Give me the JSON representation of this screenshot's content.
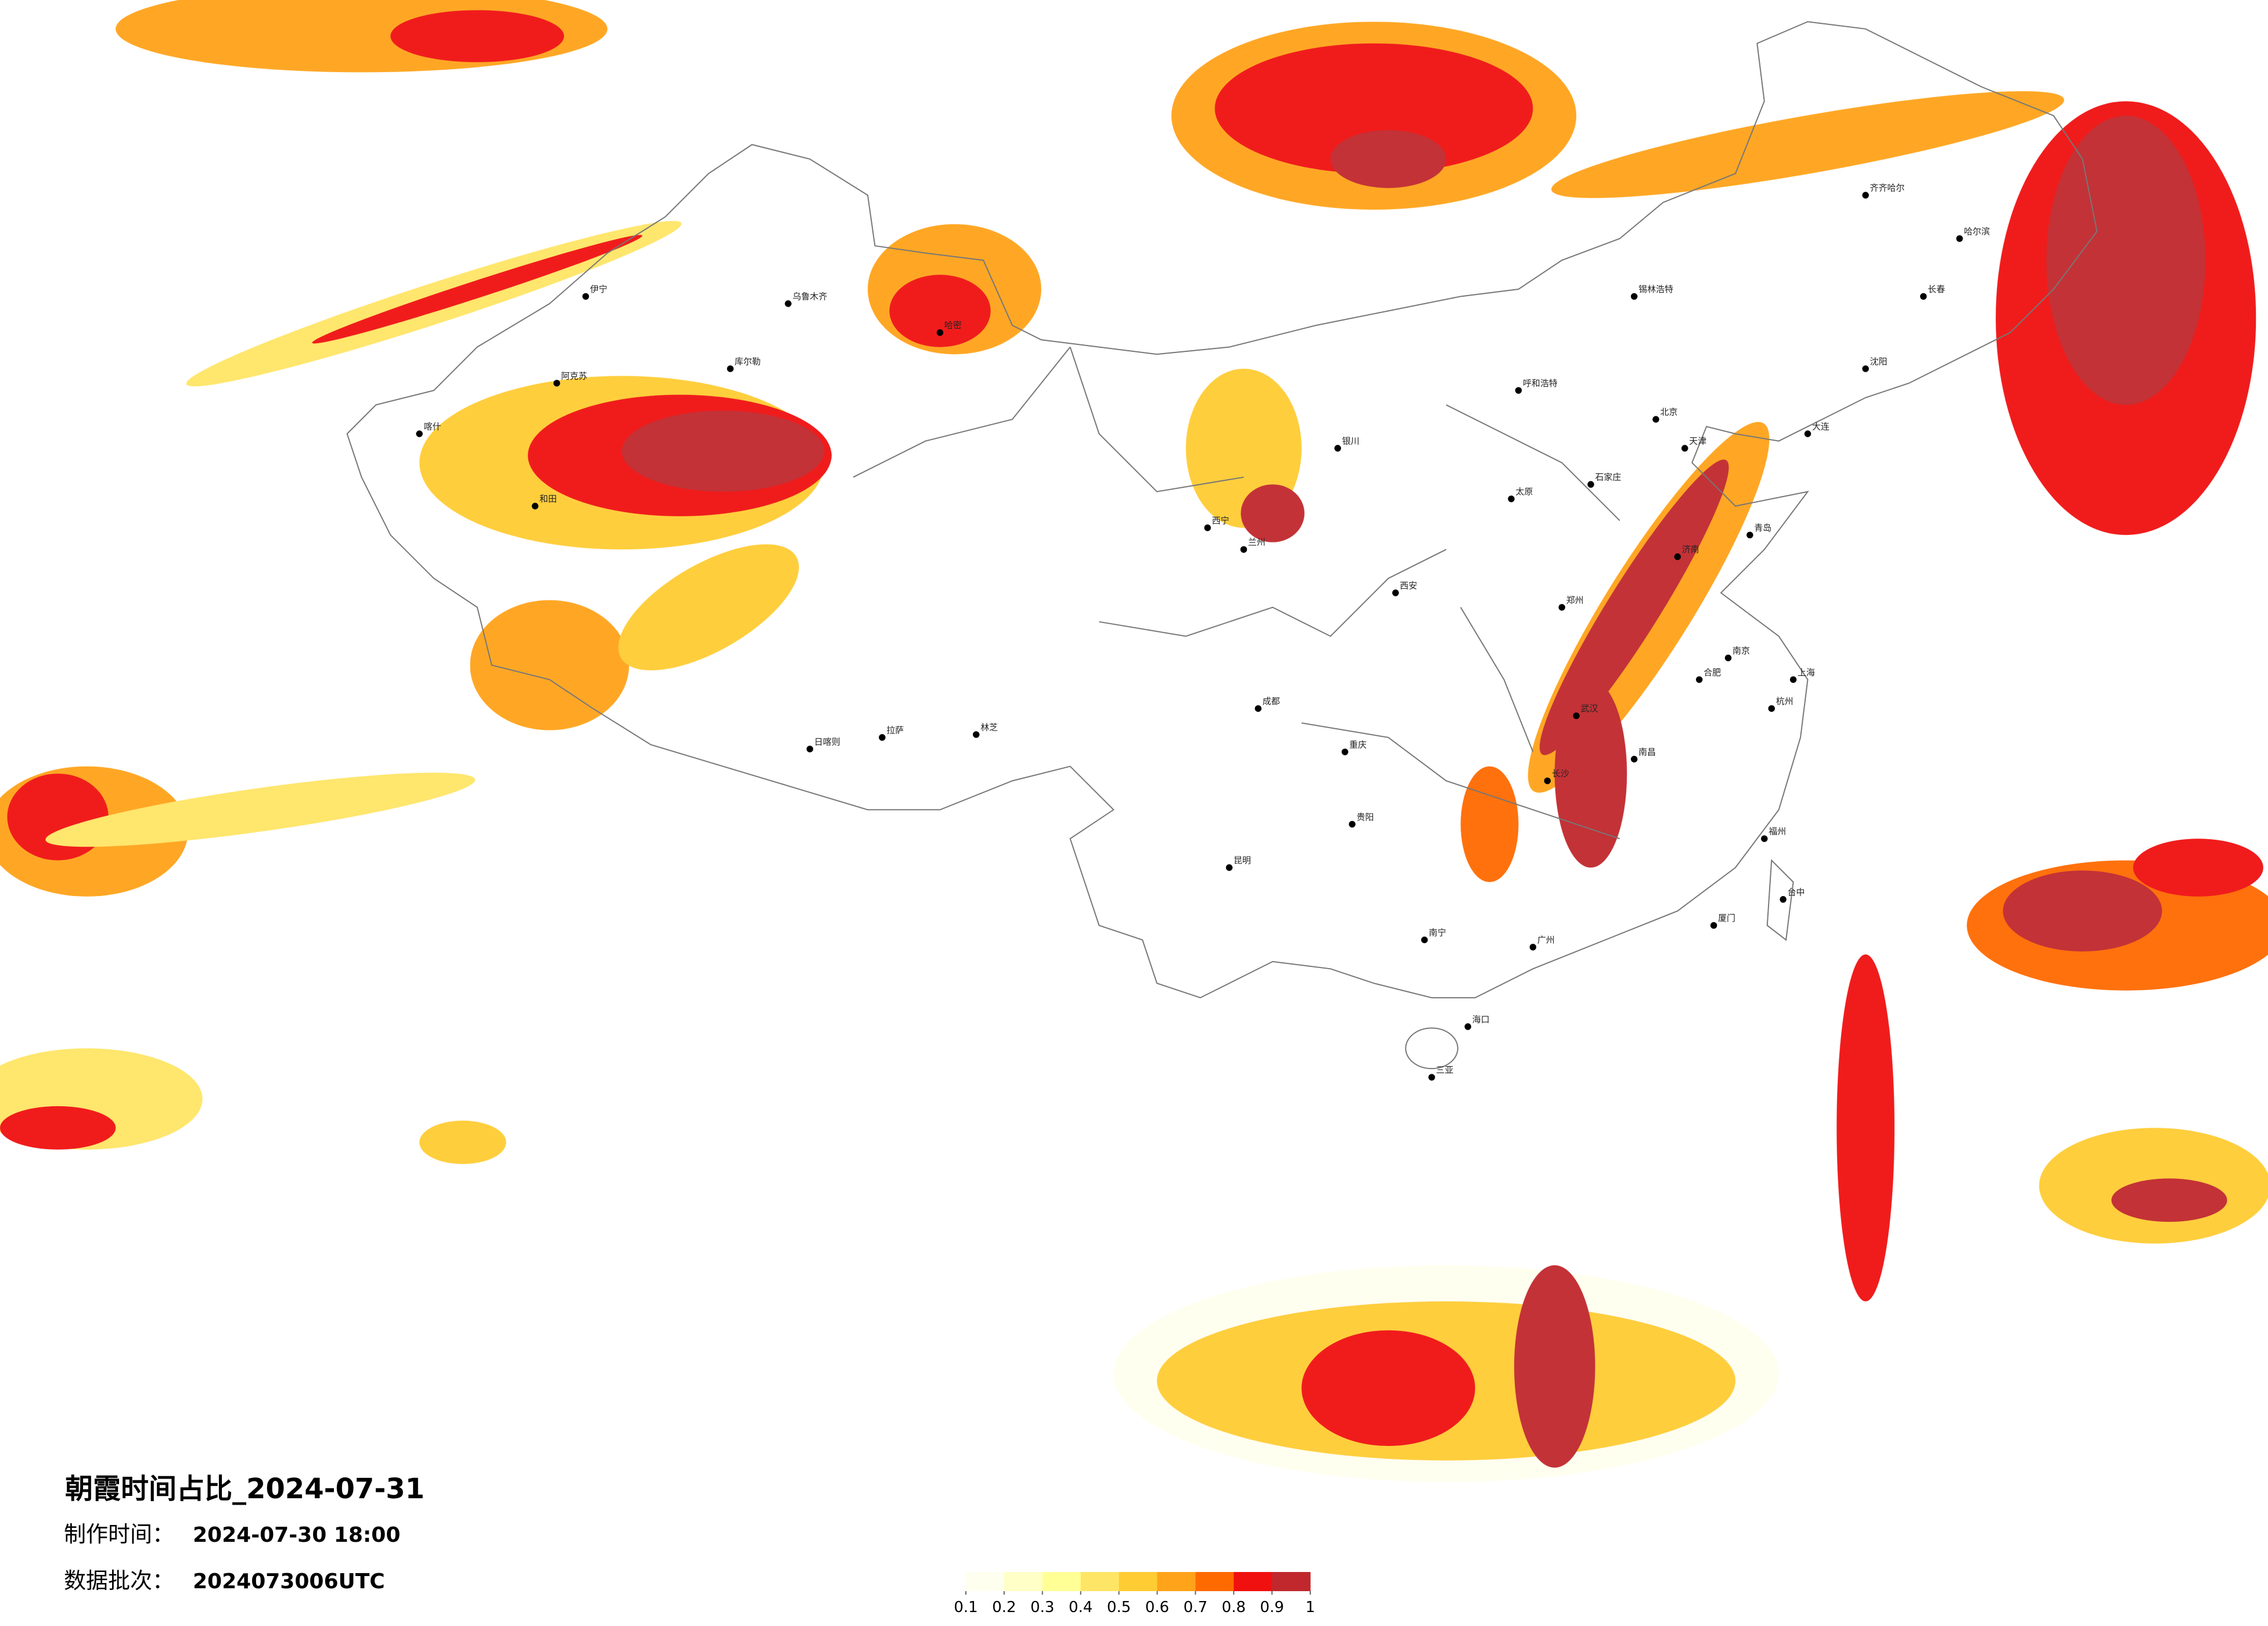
{
  "title": "朝霞时间占比_2024-07-31",
  "made_label": "制作时间：",
  "made_time": "2024-07-30 18:00",
  "batch_label": "数据批次：",
  "batch": "2024073006UTC",
  "legend": {
    "ticks": [
      0.1,
      0.2,
      0.3,
      0.4,
      0.5,
      0.6,
      0.7,
      0.8,
      0.9,
      1
    ],
    "colors": [
      "#fffff0",
      "#ffffc8",
      "#ffff96",
      "#ffe566",
      "#ffcc33",
      "#ffa31a",
      "#ff6a00",
      "#f01010",
      "#c0282d"
    ]
  },
  "cities": [
    "北京",
    "天津",
    "上海",
    "广州",
    "武汉",
    "成都",
    "重庆",
    "西安",
    "兰州",
    "拉萨",
    "乌鲁木齐",
    "哈尔滨",
    "长春",
    "沈阳",
    "呼和浩特",
    "银川",
    "西宁",
    "昆明",
    "贵阳",
    "南宁",
    "福州",
    "南昌",
    "长沙",
    "郑州",
    "济南",
    "石家庄",
    "太原",
    "合肥",
    "杭州",
    "南京",
    "海口",
    "台中",
    "喀什",
    "和田",
    "阿克苏",
    "伊宁",
    "库尔勒",
    "哈密",
    "日喀则",
    "林芝",
    "锡林浩特",
    "齐齐哈尔",
    "大连",
    "青岛",
    "厦门",
    "三亚"
  ]
}
